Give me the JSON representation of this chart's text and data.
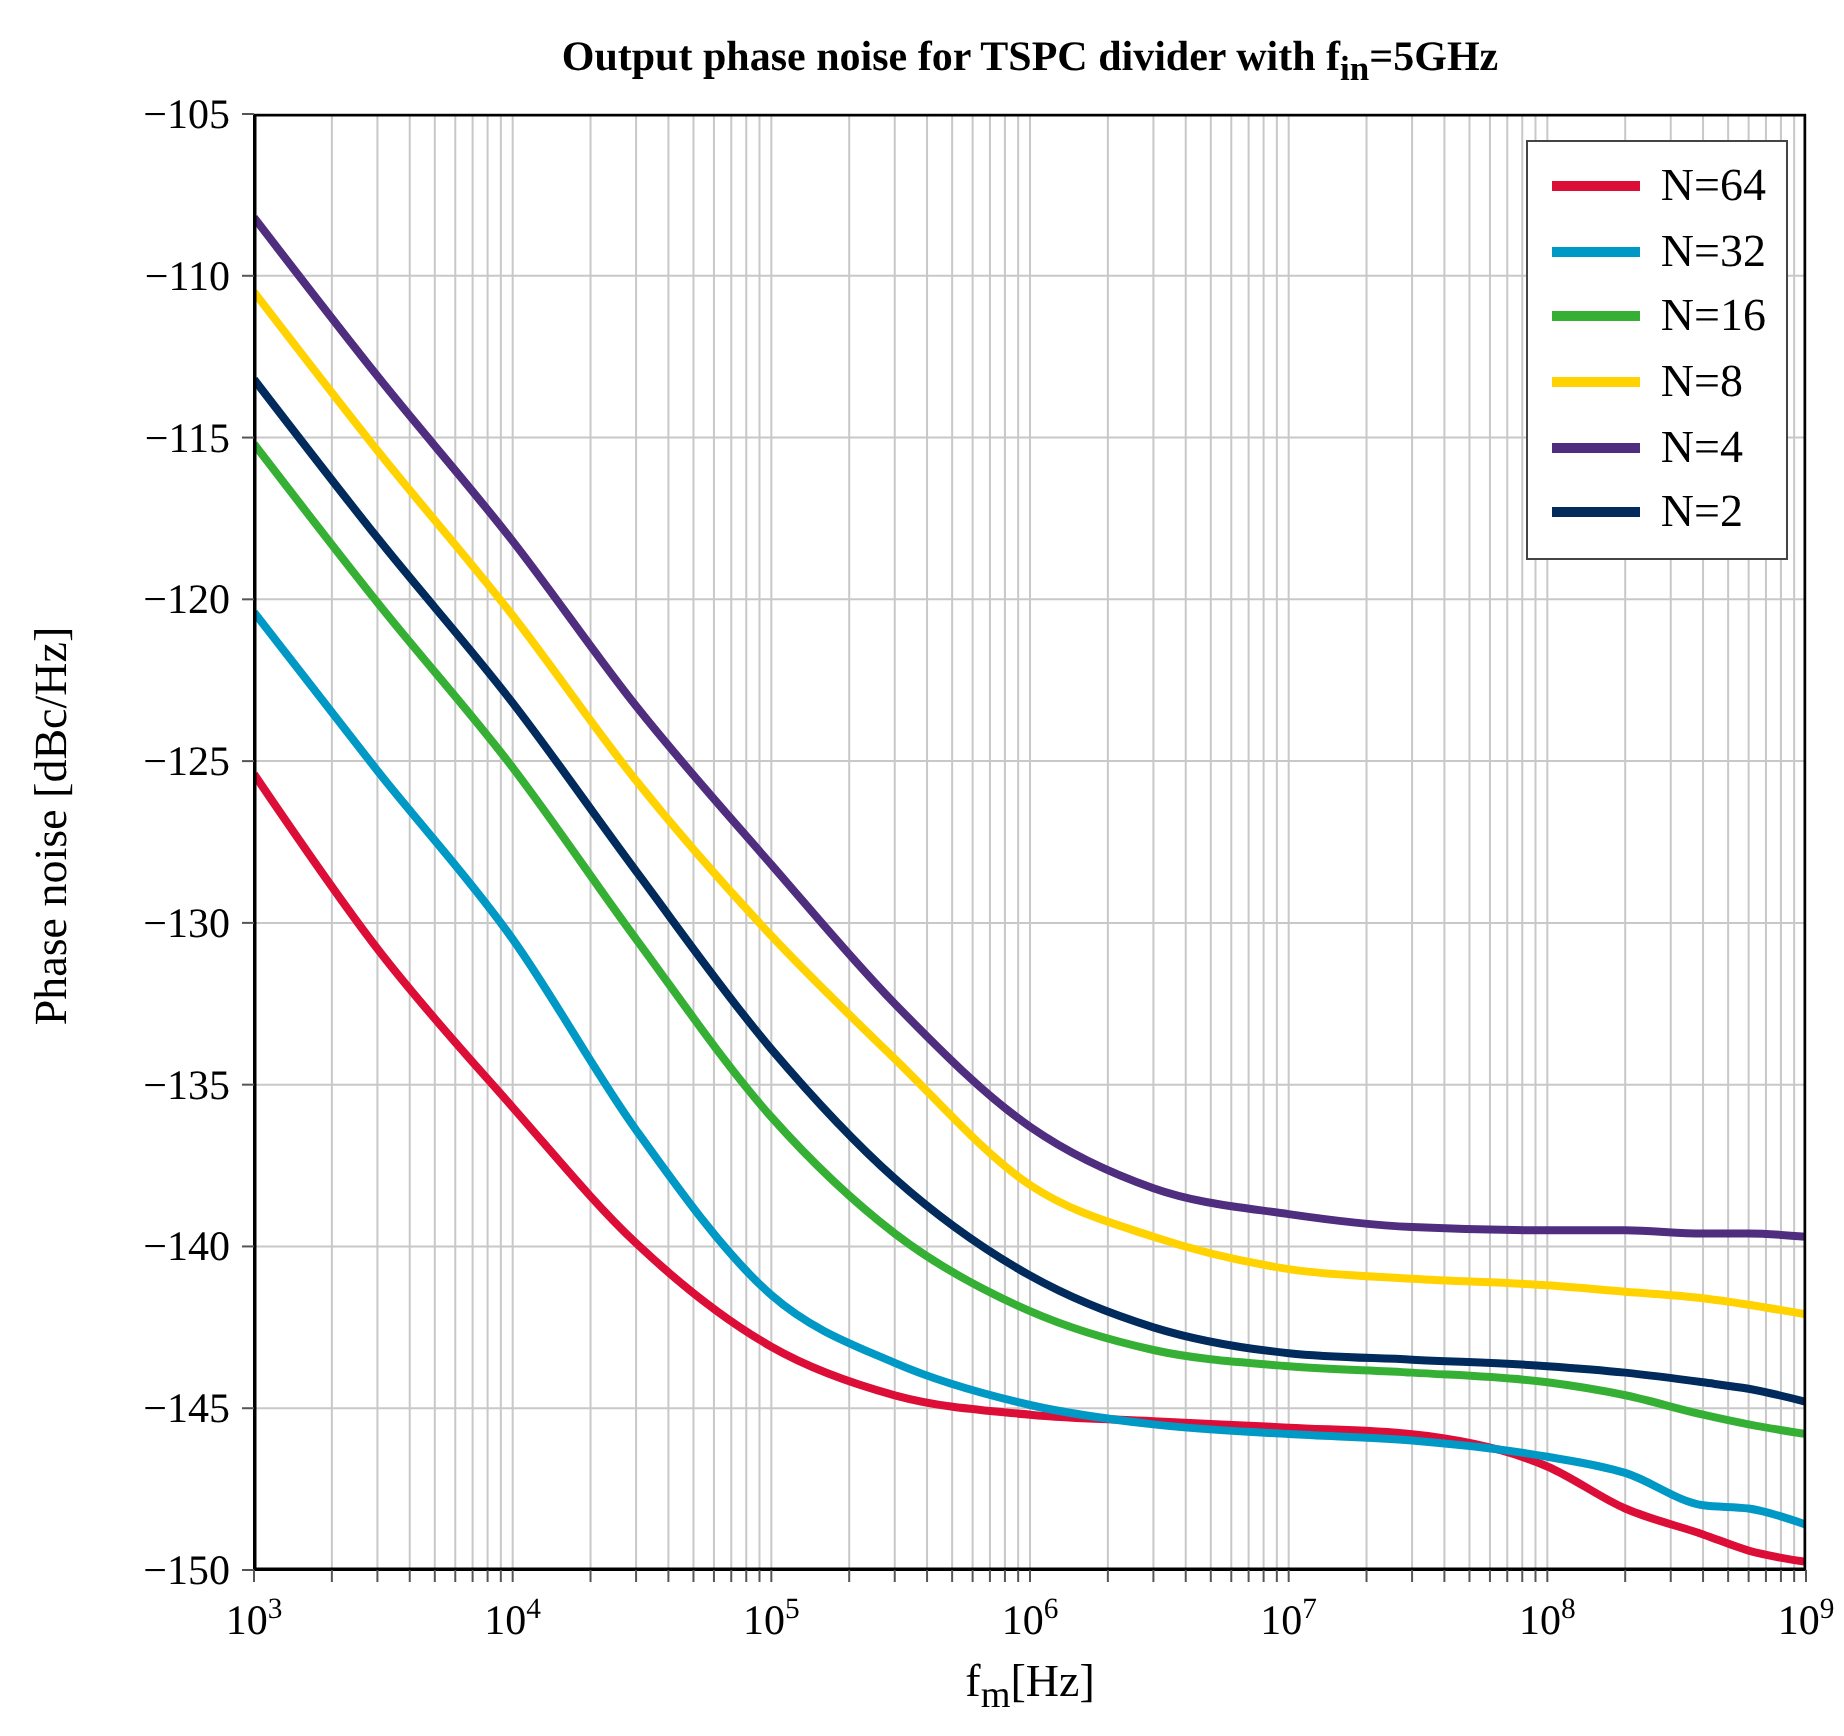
{
  "chart_data": {
    "type": "line",
    "title": "Output phase noise for TSPC divider with f$_{in}$=5GHz",
    "xlabel": "f$_{m}$[Hz]",
    "ylabel": "Phase noise [dBc/Hz]",
    "x": [
      1000,
      3000,
      10000,
      30000,
      100000,
      300000,
      1000000,
      3000000,
      10000000,
      30000000,
      100000000,
      200000000,
      400000000,
      600000000,
      1000000000
    ],
    "series": [
      {
        "name": "N=64",
        "color": "#dc0d36",
        "values": [
          -125.4,
          -130.8,
          -135.7,
          -139.9,
          -143.1,
          -144.6,
          -145.2,
          -145.4,
          -145.6,
          -145.8,
          -146.8,
          -148.1,
          -148.9,
          -149.4,
          -149.75
        ]
      },
      {
        "name": "N=32",
        "color": "#0099c6",
        "values": [
          -120.4,
          -125.3,
          -130.5,
          -136.4,
          -141.5,
          -143.6,
          -144.9,
          -145.5,
          -145.8,
          -146.0,
          -146.5,
          -147.0,
          -148.0,
          -148.1,
          -148.6
        ]
      },
      {
        "name": "N=16",
        "color": "#36b034",
        "values": [
          -115.2,
          -120.1,
          -125.2,
          -130.5,
          -136.0,
          -139.6,
          -142.0,
          -143.2,
          -143.7,
          -143.9,
          -144.2,
          -144.6,
          -145.2,
          -145.5,
          -145.8
        ]
      },
      {
        "name": "N=8",
        "color": "#ffd200",
        "values": [
          -110.5,
          -115.4,
          -120.5,
          -125.6,
          -130.4,
          -134.2,
          -138.1,
          -139.7,
          -140.7,
          -141.0,
          -141.2,
          -141.4,
          -141.6,
          -141.8,
          -142.1
        ]
      },
      {
        "name": "N=4",
        "color": "#4f2d7f",
        "values": [
          -108.2,
          -113.1,
          -118.2,
          -123.3,
          -128.2,
          -132.5,
          -136.3,
          -138.2,
          -139.0,
          -139.4,
          -139.5,
          -139.5,
          -139.6,
          -139.6,
          -139.7
        ]
      },
      {
        "name": "N=2",
        "color": "#002b5c",
        "values": [
          -113.2,
          -118.1,
          -123.2,
          -128.4,
          -133.9,
          -137.9,
          -140.9,
          -142.5,
          -143.3,
          -143.5,
          -143.7,
          -143.9,
          -144.2,
          -144.4,
          -144.8
        ]
      }
    ],
    "log": "x",
    "xlim": [
      1000,
      1000000000
    ],
    "xticks": [
      {
        "value": 1000,
        "label": "10$^{3}$"
      },
      {
        "value": 2000,
        "label": null
      },
      {
        "value": 3000,
        "label": null
      },
      {
        "value": 4000,
        "label": null
      },
      {
        "value": 5000,
        "label": null
      },
      {
        "value": 6000,
        "label": null
      },
      {
        "value": 7000,
        "label": null
      },
      {
        "value": 8000,
        "label": null
      },
      {
        "value": 9000,
        "label": null
      },
      {
        "value": 10000,
        "label": "10$^{4}$"
      },
      {
        "value": 20000,
        "label": null
      },
      {
        "value": 30000,
        "label": null
      },
      {
        "value": 40000,
        "label": null
      },
      {
        "value": 50000,
        "label": null
      },
      {
        "value": 60000,
        "label": null
      },
      {
        "value": 70000,
        "label": null
      },
      {
        "value": 80000,
        "label": null
      },
      {
        "value": 90000,
        "label": null
      },
      {
        "value": 100000,
        "label": "10$^{5}$"
      },
      {
        "value": 200000,
        "label": null
      },
      {
        "value": 300000,
        "label": null
      },
      {
        "value": 400000,
        "label": null
      },
      {
        "value": 500000,
        "label": null
      },
      {
        "value": 600000,
        "label": null
      },
      {
        "value": 700000,
        "label": null
      },
      {
        "value": 800000,
        "label": null
      },
      {
        "value": 900000,
        "label": null
      },
      {
        "value": 1000000,
        "label": "10$^{6}$"
      },
      {
        "value": 2000000,
        "label": null
      },
      {
        "value": 3000000,
        "label": null
      },
      {
        "value": 4000000,
        "label": null
      },
      {
        "value": 5000000,
        "label": null
      },
      {
        "value": 6000000,
        "label": null
      },
      {
        "value": 7000000,
        "label": null
      },
      {
        "value": 8000000,
        "label": null
      },
      {
        "value": 9000000,
        "label": null
      },
      {
        "value": 10000000,
        "label": "10$^{7}$"
      },
      {
        "value": 20000000,
        "label": null
      },
      {
        "value": 30000000,
        "label": null
      },
      {
        "value": 40000000,
        "label": null
      },
      {
        "value": 50000000,
        "label": null
      },
      {
        "value": 60000000,
        "label": null
      },
      {
        "value": 70000000,
        "label": null
      },
      {
        "value": 80000000,
        "label": null
      },
      {
        "value": 90000000,
        "label": null
      },
      {
        "value": 100000000,
        "label": "10$^{8}$"
      },
      {
        "value": 200000000,
        "label": null
      },
      {
        "value": 300000000,
        "label": null
      },
      {
        "value": 400000000,
        "label": null
      },
      {
        "value": 500000000,
        "label": null
      },
      {
        "value": 600000000,
        "label": null
      },
      {
        "value": 700000000,
        "label": null
      },
      {
        "value": 800000000,
        "label": null
      },
      {
        "value": 900000000,
        "label": null
      },
      {
        "value": 1000000000,
        "label": "10$^{9}$"
      }
    ],
    "ylim": [
      -150,
      -105
    ],
    "yticks": [
      -150,
      -145,
      -140,
      -135,
      -130,
      -125,
      -120,
      -115,
      -110,
      -105
    ],
    "grid": true,
    "legend": "top right",
    "marker": "none",
    "line_style": "solid"
  }
}
